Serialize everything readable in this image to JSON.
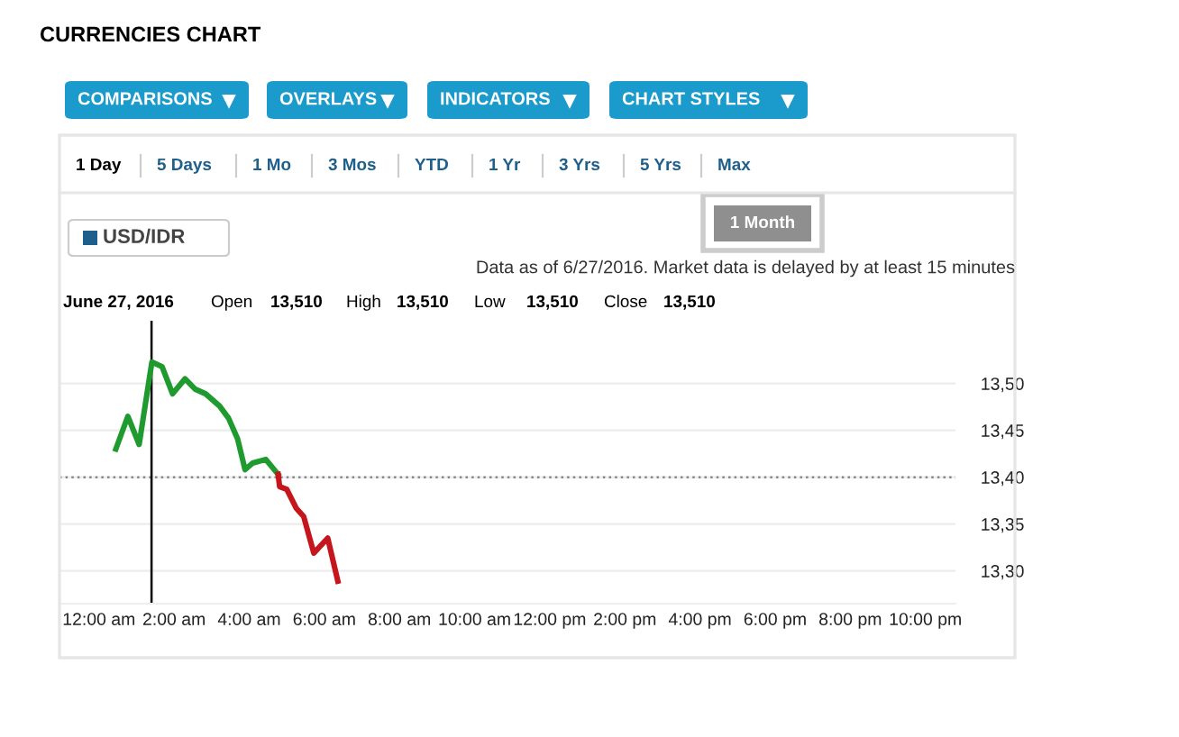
{
  "chart_data": {
    "type": "line",
    "title": "CURRENCIES CHART",
    "annotations": [
      "COMPARISONS",
      "OVERLAYS",
      "INDICATORS",
      "CHART STYLES",
      "1 Day",
      "5 Days",
      "1 Mo",
      "3 Mos",
      "YTD",
      "1 Yr",
      "3 Yrs",
      "5 Yrs",
      "Max",
      "USD/IDR",
      "1 Month",
      "Data as of 6/27/2016. Market data is delayed by at least 15 minutes",
      "June 27, 2016",
      "Open",
      "13,510",
      "High",
      "13,510",
      "Low",
      "13,510",
      "Close",
      "13,510"
    ],
    "series": [
      {
        "color": "#1e9a2e",
        "x": [
          0.45,
          0.77,
          1.07,
          1.41,
          1.68,
          1.96,
          2.29,
          2.56,
          2.84,
          3.21,
          3.45,
          3.69,
          3.89,
          4.09,
          4.44,
          4.77
        ],
        "values": [
          13.43,
          13.465,
          13.435,
          13.523,
          13.518,
          13.489,
          13.505,
          13.494,
          13.489,
          13.476,
          13.463,
          13.441,
          13.408,
          13.415,
          13.419,
          13.403
        ]
      },
      {
        "color": "#c4161c",
        "x": [
          4.77,
          4.81,
          5.0,
          5.25,
          5.45,
          5.72,
          6.09,
          6.36
        ],
        "values": [
          13.403,
          13.39,
          13.387,
          13.367,
          13.358,
          13.319,
          13.335,
          13.289
        ]
      }
    ],
    "xlim": [
      -1.05,
      22.8
    ],
    "xticks": [
      {
        "value": 0,
        "label": "12:00 am"
      },
      {
        "value": 2,
        "label": "2:00 am"
      },
      {
        "value": 4,
        "label": "4:00 am"
      },
      {
        "value": 6,
        "label": "6:00 am"
      },
      {
        "value": 8,
        "label": "8:00 am"
      },
      {
        "value": 10,
        "label": "10:00 am"
      },
      {
        "value": 12,
        "label": "12:00 pm"
      },
      {
        "value": 14,
        "label": "2:00 pm"
      },
      {
        "value": 16,
        "label": "4:00 pm"
      },
      {
        "value": 18,
        "label": "6:00 pm"
      },
      {
        "value": 20,
        "label": "8:00 pm"
      },
      {
        "value": 22,
        "label": "10:00 pm"
      }
    ],
    "ylim": [
      13.265,
      13.567
    ],
    "yticks": [
      {
        "value": 13.3,
        "label": "13,30"
      },
      {
        "value": 13.35,
        "label": "13,35"
      },
      {
        "value": 13.4,
        "label": "13,40"
      },
      {
        "value": 13.45,
        "label": "13,45"
      },
      {
        "value": 13.5,
        "label": "13,50"
      }
    ],
    "ref_lines": [
      {
        "axis": "y",
        "value": 13.4,
        "color": "#888888",
        "line_style": "dotted"
      },
      {
        "axis": "x",
        "value": 1.4,
        "color": "#000000",
        "line_style": "solid"
      }
    ],
    "grid": "y",
    "legend": false,
    "marker": "none",
    "line_style": "solid"
  }
}
